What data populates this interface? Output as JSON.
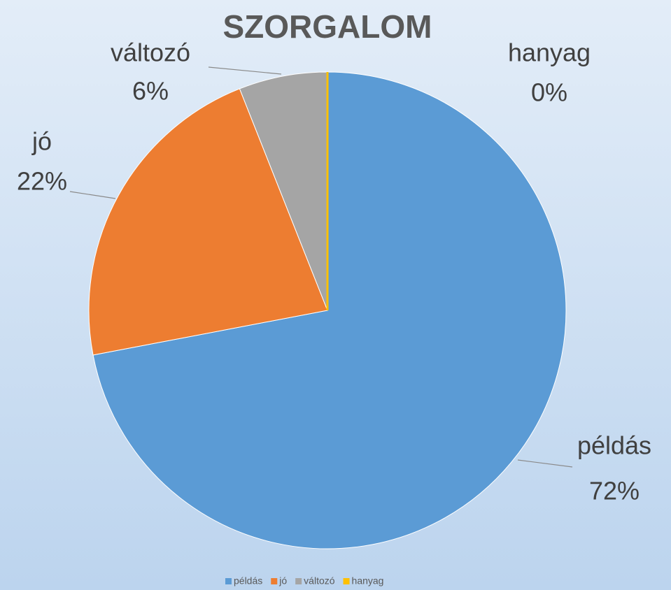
{
  "chart_data": {
    "type": "pie",
    "title": "SZORGALOM",
    "categories": [
      "példás",
      "jó",
      "változó",
      "hanyag"
    ],
    "values": [
      72,
      22,
      6,
      0
    ],
    "value_labels": [
      "72%",
      "22%",
      "6%",
      "0%"
    ],
    "colors": [
      "#5b9bd5",
      "#ed7d31",
      "#a5a5a5",
      "#ffc000"
    ],
    "legend": "bottom"
  }
}
